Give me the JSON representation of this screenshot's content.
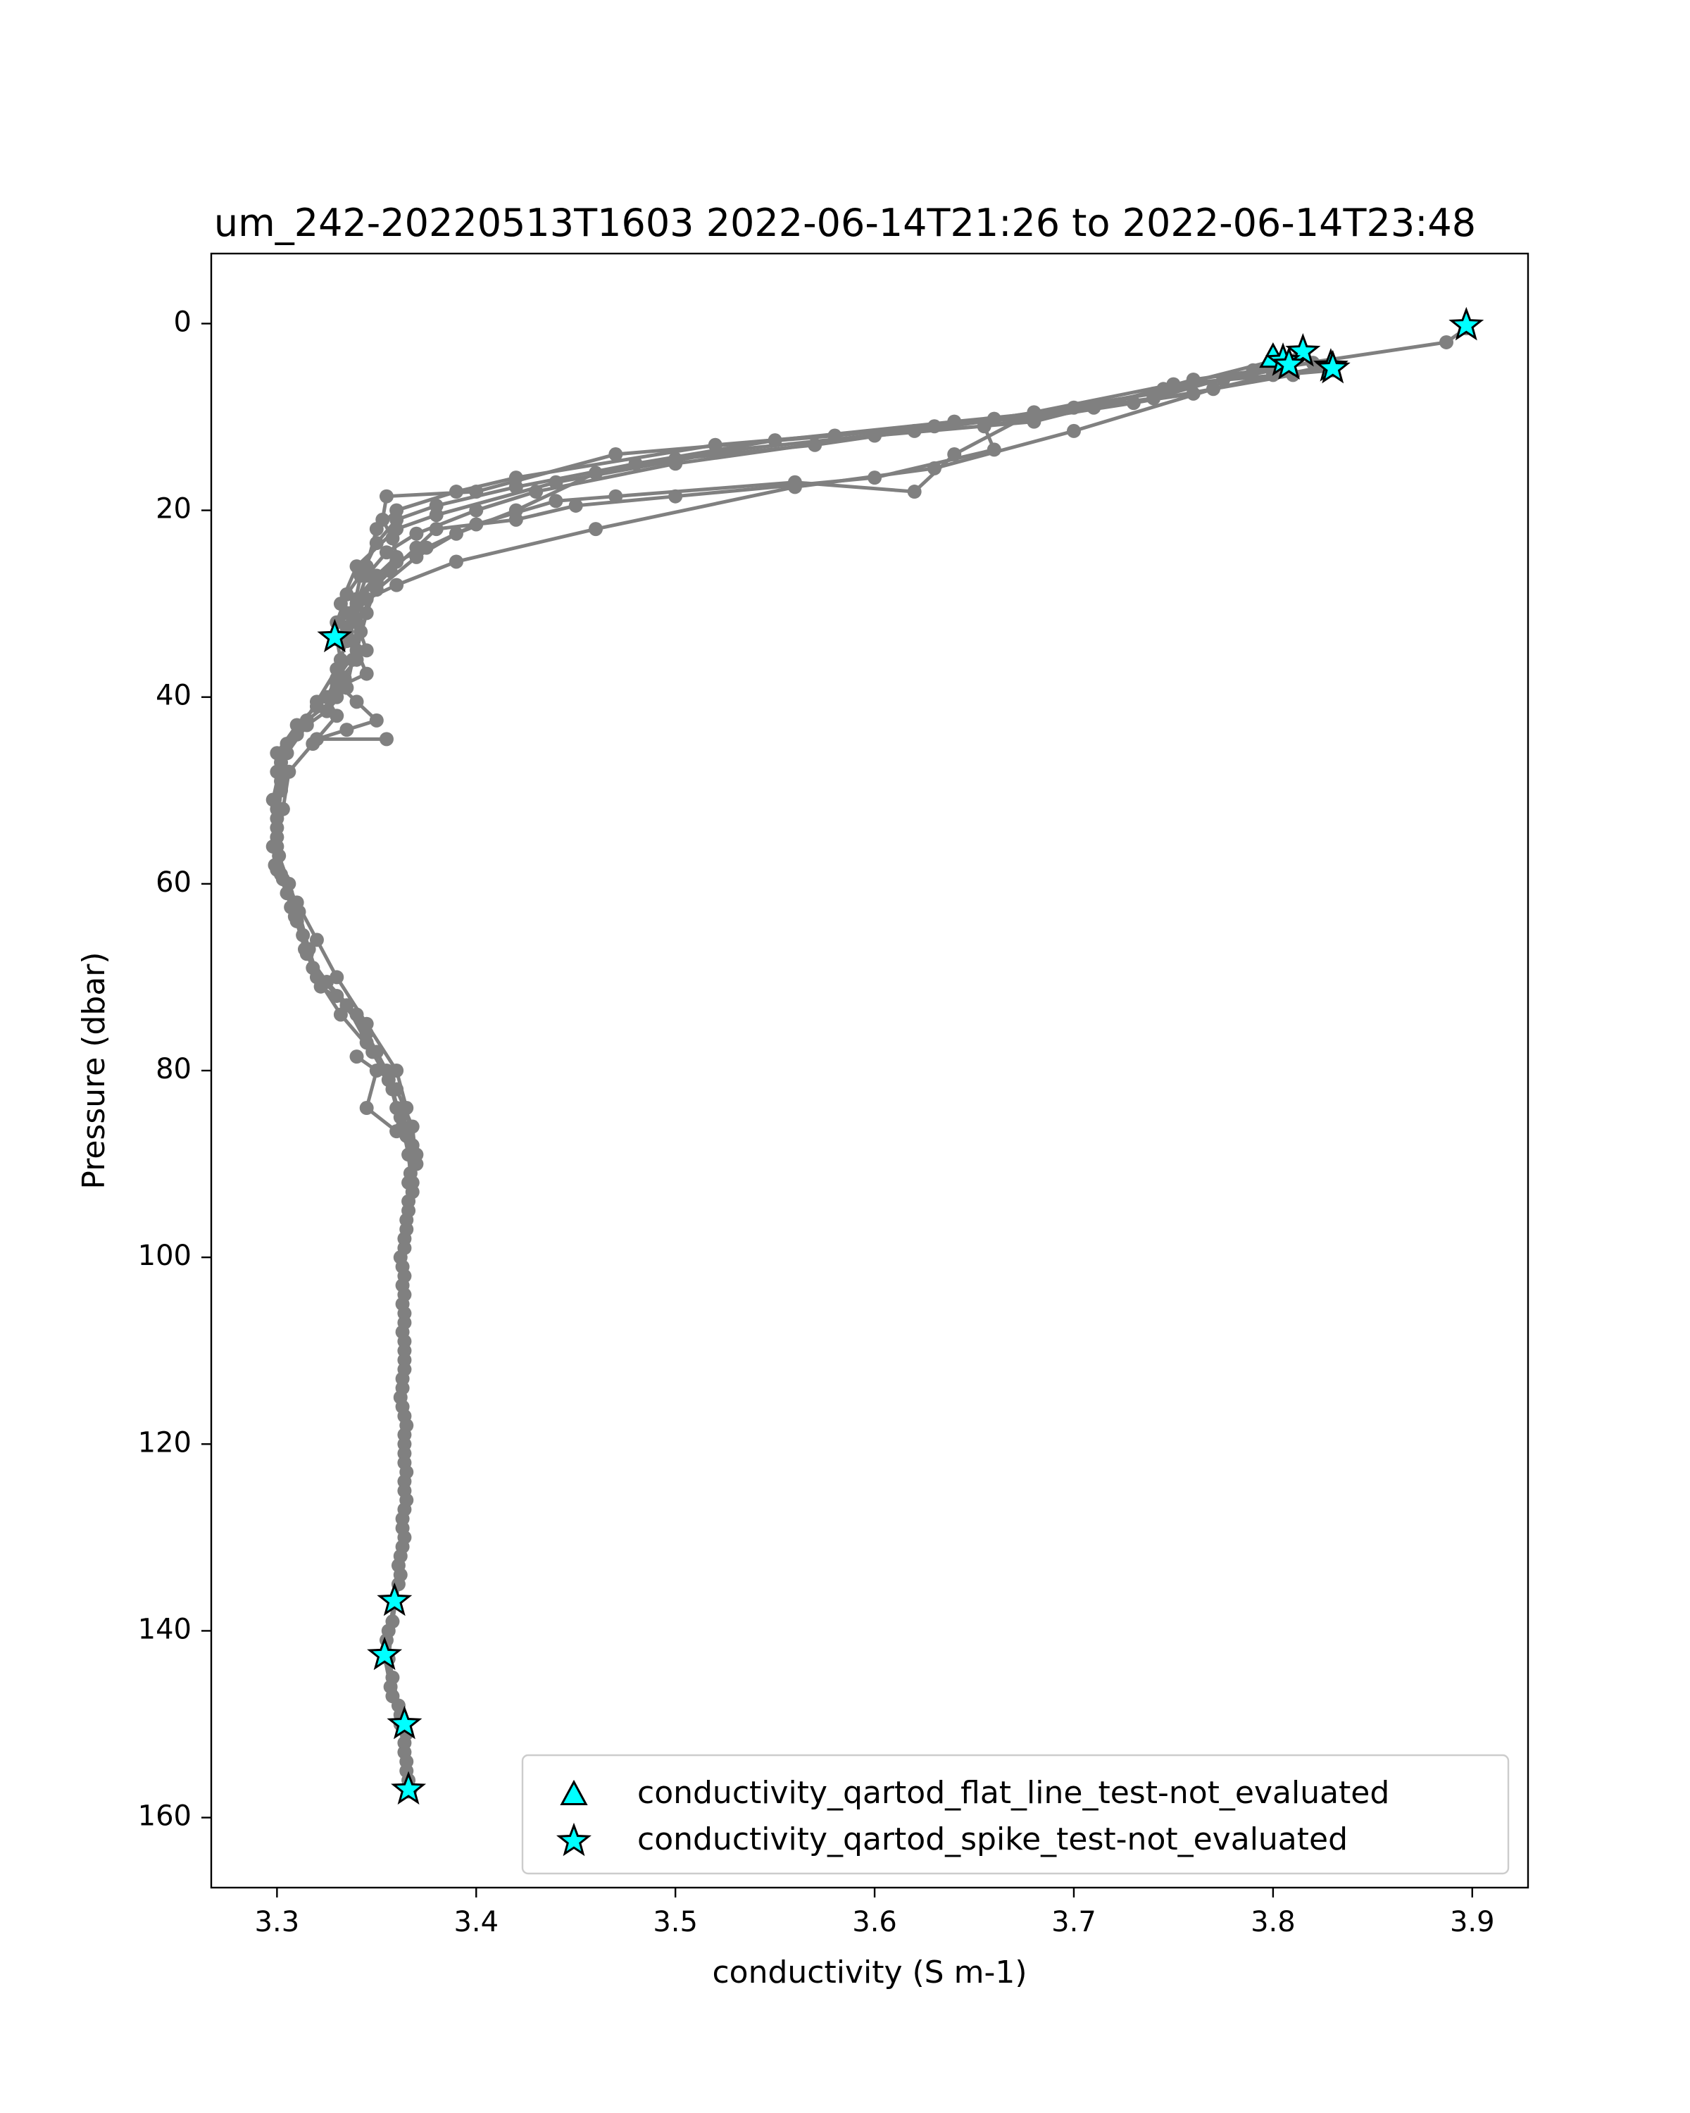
{
  "chart_data": {
    "type": "scatter",
    "title": "um_242-20220513T1603 2022-06-14T21:26 to 2022-06-14T23:48",
    "xlabel": "conductivity (S m-1)",
    "ylabel": "Pressure (dbar)",
    "xlim": [
      3.267,
      3.928
    ],
    "ylim": [
      167.5,
      -7.5
    ],
    "y_inverted": true,
    "grid": false,
    "legend_placement": "lower-right",
    "x_ticks": [
      3.3,
      3.4,
      3.5,
      3.6,
      3.7,
      3.8,
      3.9
    ],
    "x_tick_labels": [
      "3.3",
      "3.4",
      "3.5",
      "3.6",
      "3.7",
      "3.8",
      "3.9"
    ],
    "y_ticks": [
      0,
      20,
      40,
      60,
      80,
      100,
      120,
      140,
      160
    ],
    "y_tick_labels": [
      "0",
      "20",
      "40",
      "60",
      "80",
      "100",
      "120",
      "140",
      "160"
    ],
    "line_color": "#808080",
    "marker_color": "#00ffff",
    "marker_edge": "#000000",
    "series": [
      {
        "type": "line",
        "points": [
          [
            3.897,
            0.5
          ],
          [
            3.887,
            2
          ],
          [
            3.808,
            4.5
          ],
          [
            3.775,
            6
          ],
          [
            3.7,
            9
          ],
          [
            3.63,
            11
          ],
          [
            3.52,
            13
          ],
          [
            3.42,
            16.5
          ],
          [
            3.39,
            18
          ],
          [
            3.36,
            20
          ],
          [
            3.35,
            22
          ],
          [
            3.345,
            26
          ],
          [
            3.335,
            29
          ],
          [
            3.33,
            32
          ],
          [
            3.33,
            33.8
          ],
          [
            3.332,
            36
          ],
          [
            3.334,
            38
          ],
          [
            3.33,
            40
          ],
          [
            3.315,
            42.5
          ],
          [
            3.305,
            45
          ],
          [
            3.3,
            48
          ],
          [
            3.3,
            52
          ],
          [
            3.298,
            56
          ],
          [
            3.3,
            58.5
          ],
          [
            3.31,
            62
          ],
          [
            3.32,
            66
          ],
          [
            3.33,
            70
          ],
          [
            3.345,
            75
          ],
          [
            3.36,
            80
          ],
          [
            3.365,
            84
          ],
          [
            3.368,
            88
          ],
          [
            3.368,
            92
          ],
          [
            3.365,
            96
          ],
          [
            3.362,
            100
          ],
          [
            3.364,
            104
          ],
          [
            3.363,
            108
          ],
          [
            3.364,
            112
          ],
          [
            3.363,
            116
          ],
          [
            3.364,
            120
          ],
          [
            3.364,
            124
          ],
          [
            3.363,
            128
          ],
          [
            3.362,
            132
          ],
          [
            3.359,
            136.8
          ],
          [
            3.356,
            140
          ],
          [
            3.354,
            142.8
          ],
          [
            3.357,
            146
          ],
          [
            3.361,
            148
          ],
          [
            3.364,
            150.2
          ],
          [
            3.364,
            152
          ],
          [
            3.365,
            154
          ],
          [
            3.366,
            157.2
          ]
        ]
      },
      {
        "type": "line",
        "points": [
          [
            3.83,
            4.7
          ],
          [
            3.8,
            5.5
          ],
          [
            3.76,
            7.5
          ],
          [
            3.68,
            10
          ],
          [
            3.58,
            12
          ],
          [
            3.47,
            14
          ],
          [
            3.4,
            18
          ],
          [
            3.355,
            18.5
          ],
          [
            3.353,
            21
          ],
          [
            3.358,
            23
          ],
          [
            3.36,
            25
          ],
          [
            3.35,
            27
          ],
          [
            3.34,
            29.5
          ],
          [
            3.335,
            31
          ],
          [
            3.338,
            34
          ],
          [
            3.345,
            37.5
          ],
          [
            3.33,
            39
          ],
          [
            3.32,
            41
          ],
          [
            3.31,
            43
          ],
          [
            3.3,
            46
          ],
          [
            3.302,
            50
          ],
          [
            3.3,
            54
          ],
          [
            3.299,
            58
          ],
          [
            3.305,
            61
          ],
          [
            3.31,
            64
          ],
          [
            3.315,
            67.5
          ],
          [
            3.325,
            70.5
          ],
          [
            3.34,
            74
          ],
          [
            3.35,
            78
          ],
          [
            3.36,
            82
          ],
          [
            3.368,
            86
          ],
          [
            3.37,
            90
          ],
          [
            3.366,
            94
          ],
          [
            3.364,
            98
          ],
          [
            3.364,
            102
          ],
          [
            3.364,
            106
          ],
          [
            3.364,
            110
          ],
          [
            3.363,
            114
          ],
          [
            3.365,
            118
          ],
          [
            3.364,
            122
          ],
          [
            3.365,
            126
          ],
          [
            3.364,
            130
          ],
          [
            3.362,
            134
          ],
          [
            3.359,
            137
          ],
          [
            3.355,
            141
          ],
          [
            3.358,
            145
          ],
          [
            3.362,
            149
          ],
          [
            3.365,
            151
          ],
          [
            3.365,
            155
          ],
          [
            3.367,
            157
          ]
        ]
      },
      {
        "type": "line",
        "points": [
          [
            3.815,
            3
          ],
          [
            3.79,
            5
          ],
          [
            3.74,
            8
          ],
          [
            3.62,
            11.5
          ],
          [
            3.53,
            13.5
          ],
          [
            3.44,
            17
          ],
          [
            3.38,
            20.5
          ],
          [
            3.36,
            22
          ],
          [
            3.34,
            26
          ],
          [
            3.332,
            30
          ],
          [
            3.335,
            34
          ],
          [
            3.33,
            37
          ],
          [
            3.32,
            40.5
          ],
          [
            3.31,
            44
          ],
          [
            3.302,
            47
          ],
          [
            3.298,
            51
          ],
          [
            3.3,
            55
          ],
          [
            3.302,
            59
          ],
          [
            3.307,
            62.5
          ],
          [
            3.313,
            65.5
          ],
          [
            3.318,
            69
          ],
          [
            3.33,
            72
          ],
          [
            3.345,
            76
          ],
          [
            3.355,
            80
          ],
          [
            3.36,
            84
          ],
          [
            3.365,
            87
          ],
          [
            3.367,
            91
          ],
          [
            3.366,
            95
          ],
          [
            3.364,
            99
          ],
          [
            3.363,
            103
          ],
          [
            3.364,
            107
          ],
          [
            3.364,
            111
          ],
          [
            3.362,
            115
          ],
          [
            3.364,
            119
          ],
          [
            3.365,
            123
          ],
          [
            3.364,
            127
          ],
          [
            3.363,
            131
          ],
          [
            3.361,
            135
          ],
          [
            3.358,
            139
          ],
          [
            3.356,
            143
          ],
          [
            3.358,
            147
          ],
          [
            3.362,
            150
          ],
          [
            3.364,
            153
          ],
          [
            3.366,
            156
          ]
        ]
      },
      {
        "type": "line",
        "points": [
          [
            3.8,
            4
          ],
          [
            3.745,
            7
          ],
          [
            3.68,
            10.5
          ],
          [
            3.6,
            12
          ],
          [
            3.5,
            15
          ],
          [
            3.43,
            18
          ],
          [
            3.4,
            20
          ],
          [
            3.37,
            22.5
          ],
          [
            3.355,
            24.5
          ],
          [
            3.345,
            27
          ],
          [
            3.34,
            30
          ],
          [
            3.342,
            33
          ],
          [
            3.338,
            36
          ],
          [
            3.335,
            39
          ],
          [
            3.325,
            41.5
          ],
          [
            3.315,
            43
          ],
          [
            3.305,
            46
          ],
          [
            3.302,
            49
          ],
          [
            3.3,
            53
          ],
          [
            3.301,
            57
          ],
          [
            3.306,
            60
          ],
          [
            3.311,
            63
          ],
          [
            3.316,
            67
          ],
          [
            3.322,
            71
          ],
          [
            3.335,
            73
          ],
          [
            3.345,
            77
          ],
          [
            3.356,
            81
          ],
          [
            3.362,
            85
          ],
          [
            3.366,
            89
          ],
          [
            3.368,
            93
          ],
          [
            3.365,
            97
          ],
          [
            3.363,
            101
          ],
          [
            3.363,
            105
          ],
          [
            3.364,
            109
          ],
          [
            3.363,
            113
          ],
          [
            3.364,
            117
          ],
          [
            3.364,
            121
          ],
          [
            3.364,
            125
          ],
          [
            3.363,
            129
          ],
          [
            3.361,
            133
          ]
        ]
      },
      {
        "type": "line",
        "points": [
          [
            3.81,
            5.5
          ],
          [
            3.73,
            8.5
          ],
          [
            3.655,
            11
          ],
          [
            3.66,
            13.5
          ],
          [
            3.6,
            16.5
          ],
          [
            3.5,
            18.5
          ],
          [
            3.45,
            19.5
          ],
          [
            3.42,
            21
          ],
          [
            3.38,
            22
          ],
          [
            3.37,
            24
          ],
          [
            3.357,
            26.5
          ],
          [
            3.35,
            28
          ],
          [
            3.345,
            31
          ],
          [
            3.34,
            35
          ],
          [
            3.33,
            38
          ],
          [
            3.325,
            40
          ],
          [
            3.33,
            42
          ],
          [
            3.318,
            45
          ],
          [
            3.306,
            48
          ],
          [
            3.303,
            52
          ],
          [
            3.3,
            56
          ],
          [
            3.303,
            59.5
          ],
          [
            3.309,
            63.5
          ],
          [
            3.314,
            67
          ],
          [
            3.32,
            70
          ],
          [
            3.332,
            74
          ],
          [
            3.348,
            78
          ],
          [
            3.358,
            82
          ],
          [
            3.363,
            86
          ]
        ]
      },
      {
        "type": "line",
        "points": [
          [
            3.83,
            5
          ],
          [
            3.75,
            6.5
          ],
          [
            3.68,
            9.5
          ],
          [
            3.64,
            14
          ],
          [
            3.62,
            18
          ],
          [
            3.56,
            17
          ],
          [
            3.47,
            18.5
          ],
          [
            3.44,
            19
          ],
          [
            3.4,
            21.5
          ],
          [
            3.375,
            24
          ],
          [
            3.36,
            25.5
          ],
          [
            3.35,
            27.5
          ],
          [
            3.34,
            30
          ],
          [
            3.335,
            33
          ]
        ]
      },
      {
        "type": "line",
        "points": [
          [
            3.82,
            4.2
          ],
          [
            3.76,
            6
          ],
          [
            3.71,
            9
          ],
          [
            3.64,
            10.5
          ],
          [
            3.55,
            12.5
          ],
          [
            3.48,
            15
          ],
          [
            3.42,
            17.5
          ],
          [
            3.38,
            19.5
          ],
          [
            3.36,
            21
          ],
          [
            3.35,
            23.5
          ],
          [
            3.342,
            27
          ],
          [
            3.338,
            31
          ]
        ]
      },
      {
        "type": "line",
        "points": [
          [
            3.805,
            4.8
          ],
          [
            3.74,
            7.5
          ],
          [
            3.66,
            10.2
          ],
          [
            3.57,
            13
          ],
          [
            3.5,
            14.5
          ],
          [
            3.46,
            16
          ],
          [
            3.42,
            20
          ],
          [
            3.39,
            22.5
          ],
          [
            3.37,
            25
          ],
          [
            3.35,
            28.5
          ],
          [
            3.34,
            32
          ],
          [
            3.345,
            35
          ]
        ]
      },
      {
        "type": "line",
        "points": [
          [
            3.828,
            4.5
          ],
          [
            3.77,
            7
          ],
          [
            3.7,
            11.5
          ],
          [
            3.63,
            15.5
          ],
          [
            3.56,
            17.5
          ],
          [
            3.46,
            22
          ],
          [
            3.39,
            25.5
          ],
          [
            3.36,
            28
          ],
          [
            3.345,
            29.5
          ],
          [
            3.335,
            32.5
          ],
          [
            3.34,
            36
          ],
          [
            3.33,
            38.5
          ],
          [
            3.34,
            40.5
          ],
          [
            3.35,
            42.5
          ],
          [
            3.335,
            43.5
          ],
          [
            3.32,
            44.5
          ],
          [
            3.355,
            44.5
          ]
        ]
      },
      {
        "type": "line",
        "points": [
          [
            3.34,
            78.5
          ],
          [
            3.35,
            80
          ],
          [
            3.345,
            84
          ],
          [
            3.36,
            86.5
          ],
          [
            3.37,
            89
          ],
          [
            3.366,
            92
          ]
        ]
      }
    ],
    "markers": [
      {
        "name": "conductivity_qartod_flat_line_test-not_evaluated",
        "shape": "triangle",
        "points": [
          [
            3.8,
            3.6
          ]
        ]
      },
      {
        "name": "conductivity_qartod_spike_test-not_evaluated",
        "shape": "star",
        "points": [
          [
            3.897,
            0.2
          ],
          [
            3.815,
            3.0
          ],
          [
            3.805,
            4.0
          ],
          [
            3.808,
            4.4
          ],
          [
            3.829,
            4.6
          ],
          [
            3.83,
            4.8
          ],
          [
            3.329,
            33.6
          ],
          [
            3.359,
            136.8
          ],
          [
            3.354,
            142.6
          ],
          [
            3.364,
            150.0
          ],
          [
            3.366,
            157.0
          ]
        ]
      }
    ],
    "legend": [
      {
        "label": "conductivity_qartod_flat_line_test-not_evaluated",
        "shape": "triangle"
      },
      {
        "label": "conductivity_qartod_spike_test-not_evaluated",
        "shape": "star"
      }
    ]
  }
}
